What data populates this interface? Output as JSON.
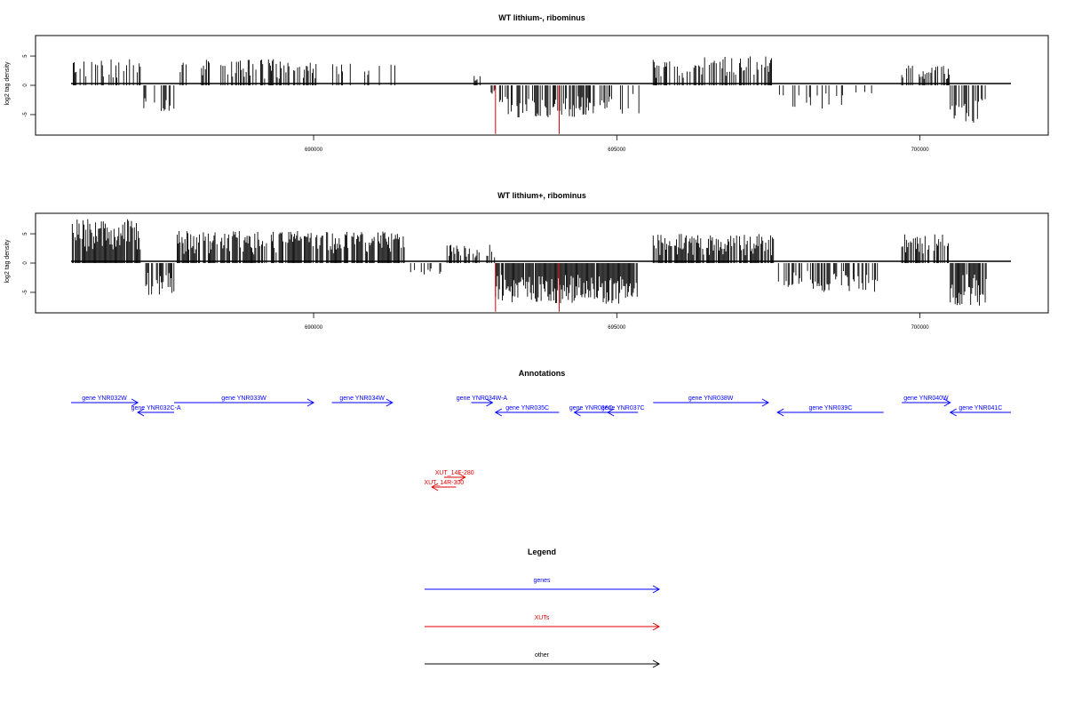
{
  "chart_data": [
    {
      "type": "bar",
      "title": "WT lithium-, ribominus",
      "ylabel": "log2 tag density",
      "xlabel": "",
      "xlim": [
        686000,
        701500
      ],
      "ylim": [
        -8.5,
        8.5
      ],
      "yticks": [
        -5,
        0,
        5
      ],
      "xticks": [
        690000,
        695000,
        700000
      ],
      "grid": false,
      "series": [
        {
          "color": "#000000",
          "segments": [
            {
              "start": 686020,
              "end": 687150,
              "sign": 1,
              "max": 4.5,
              "density": 0.35
            },
            {
              "start": 687200,
              "end": 687750,
              "sign": -1,
              "max": 4.5,
              "density": 0.3
            },
            {
              "start": 687800,
              "end": 690050,
              "sign": 1,
              "max": 4.5,
              "density": 0.4
            },
            {
              "start": 690300,
              "end": 691500,
              "sign": 1,
              "max": 3.8,
              "density": 0.18
            },
            {
              "start": 692600,
              "end": 692750,
              "sign": 1,
              "max": 1.8,
              "density": 0.3
            },
            {
              "start": 692800,
              "end": 693000,
              "sign": -1,
              "max": 1.5,
              "density": 0.2
            },
            {
              "start": 693050,
              "end": 694500,
              "sign": -1,
              "max": 5.5,
              "density": 0.6
            },
            {
              "start": 694500,
              "end": 695400,
              "sign": -1,
              "max": 5,
              "density": 0.4
            },
            {
              "start": 695600,
              "end": 697600,
              "sign": 1,
              "max": 5,
              "density": 0.45
            },
            {
              "start": 697650,
              "end": 699300,
              "sign": -1,
              "max": 4,
              "density": 0.2
            },
            {
              "start": 699700,
              "end": 700500,
              "sign": 1,
              "max": 3.5,
              "density": 0.35
            },
            {
              "start": 700500,
              "end": 701100,
              "sign": -1,
              "max": 6.5,
              "density": 0.45
            }
          ]
        },
        {
          "color": "#e00000",
          "spikes": [
            {
              "x": 693000,
              "value": -8.3
            },
            {
              "x": 694050,
              "value": -8.3
            }
          ]
        }
      ]
    },
    {
      "type": "bar",
      "title": "WT lithium+, ribominus",
      "ylabel": "log2 tag density",
      "xlabel": "",
      "xlim": [
        686000,
        701500
      ],
      "ylim": [
        -8.5,
        8.5
      ],
      "yticks": [
        -5,
        0,
        5
      ],
      "xticks": [
        690000,
        695000,
        700000
      ],
      "grid": false,
      "series": [
        {
          "color": "#000000",
          "segments": [
            {
              "start": 686020,
              "end": 687150,
              "sign": 1,
              "max": 7.5,
              "density": 0.9
            },
            {
              "start": 687200,
              "end": 687700,
              "sign": -1,
              "max": 5.5,
              "density": 0.7
            },
            {
              "start": 687750,
              "end": 691500,
              "sign": 1,
              "max": 5.5,
              "density": 0.75
            },
            {
              "start": 691600,
              "end": 692150,
              "sign": -1,
              "max": 2,
              "density": 0.25
            },
            {
              "start": 692200,
              "end": 693000,
              "sign": 1,
              "max": 3.2,
              "density": 0.5
            },
            {
              "start": 693000,
              "end": 695350,
              "sign": -1,
              "max": 7,
              "density": 0.95
            },
            {
              "start": 695600,
              "end": 697600,
              "sign": 1,
              "max": 5,
              "density": 0.8
            },
            {
              "start": 697650,
              "end": 699300,
              "sign": -1,
              "max": 5,
              "density": 0.5
            },
            {
              "start": 699700,
              "end": 700500,
              "sign": 1,
              "max": 5,
              "density": 0.7
            },
            {
              "start": 700500,
              "end": 701100,
              "sign": -1,
              "max": 7.5,
              "density": 0.75
            }
          ]
        },
        {
          "color": "#e00000",
          "spikes": [
            {
              "x": 693000,
              "value": -8.3
            },
            {
              "x": 694050,
              "value": -8.3
            }
          ]
        }
      ]
    }
  ],
  "annotations": {
    "title": "Annotations",
    "genes": [
      {
        "label": "gene YNR032W",
        "start": 686000,
        "end": 687100,
        "strand": "+",
        "row": 0
      },
      {
        "label": "gene YNR032C-A",
        "start": 687100,
        "end": 687700,
        "strand": "-",
        "row": 1
      },
      {
        "label": "gene YNR033W",
        "start": 687700,
        "end": 690000,
        "strand": "+",
        "row": 0
      },
      {
        "label": "gene YNR034W",
        "start": 690300,
        "end": 691300,
        "strand": "+",
        "row": 0
      },
      {
        "label": "gene YNR034W-A",
        "start": 692600,
        "end": 692950,
        "strand": "+",
        "row": 0
      },
      {
        "label": "gene YNR035C",
        "start": 693000,
        "end": 694050,
        "strand": "-",
        "row": 1
      },
      {
        "label": "gene YNR036C",
        "start": 694300,
        "end": 694850,
        "strand": "-",
        "row": 1
      },
      {
        "label": "gene YNR037C",
        "start": 694850,
        "end": 695350,
        "strand": "-",
        "row": 1
      },
      {
        "label": "gene YNR038W",
        "start": 695600,
        "end": 697500,
        "strand": "+",
        "row": 0
      },
      {
        "label": "gene YNR039C",
        "start": 697650,
        "end": 699400,
        "strand": "-",
        "row": 1
      },
      {
        "label": "gene YNR040W",
        "start": 699700,
        "end": 700500,
        "strand": "+",
        "row": 0
      },
      {
        "label": "gene YNR041C",
        "start": 700500,
        "end": 701500,
        "strand": "-",
        "row": 1
      }
    ],
    "xuts": [
      {
        "label": "XUT_14F-280",
        "start": 692150,
        "end": 692500,
        "strand": "+",
        "row": 0
      },
      {
        "label": "XUT_14R-300",
        "start": 691950,
        "end": 692350,
        "strand": "-",
        "row": 1
      }
    ]
  },
  "legend": {
    "title": "Legend",
    "entries": [
      {
        "label": "genes",
        "color": "#0000ff"
      },
      {
        "label": "XUTs",
        "color": "#e00000"
      },
      {
        "label": "other",
        "color": "#000000"
      }
    ]
  }
}
